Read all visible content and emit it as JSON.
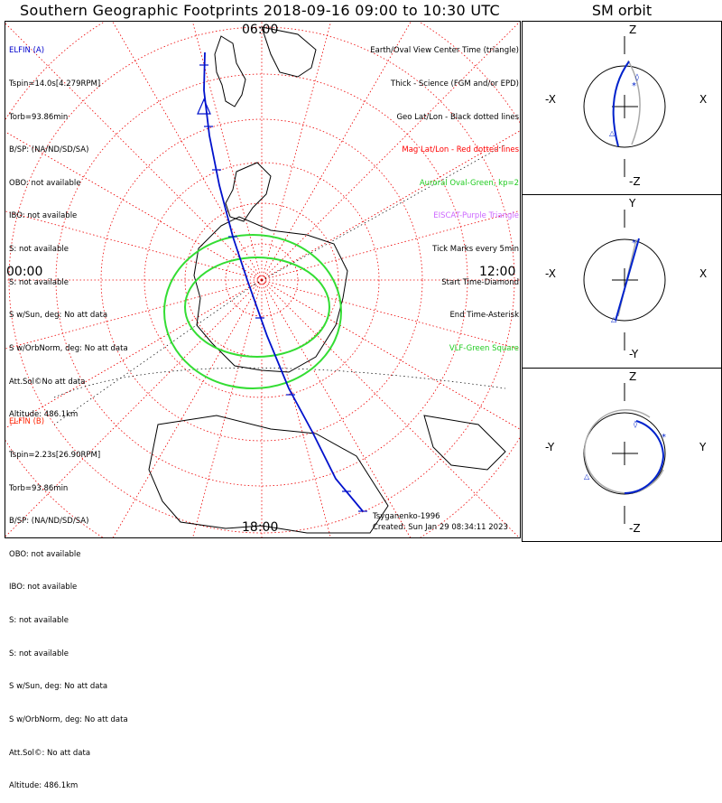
{
  "title": "Southern Geographic Footprints 2018-09-16 09:00 to 10:30 UTC",
  "sm_title": "SM orbit",
  "map": {
    "clock_top": "06:00",
    "clock_left": "00:00",
    "clock_right": "12:00",
    "clock_bottom": "18:00",
    "model": "Tsyganenko-1996",
    "created": "Created: Sun Jan 29 08:34:11 2023"
  },
  "elfin_a": {
    "name": "ELFIN (A)",
    "color": "#0000cc",
    "lines": [
      "Tspin=14.0s[4.279RPM]",
      "Torb=93.86min",
      "B/SP: (NA/ND/SD/SA)",
      "OBO: not available",
      "IBO: not available",
      "S: not available",
      "S: not available",
      "S w/Sun, deg: No att data",
      "S w/OrbNorm, deg: No att data",
      "Att.Sol©No att data",
      "Altitude: 486.1km"
    ]
  },
  "elfin_b": {
    "name": "ELFIN (B)",
    "color": "#ff2200",
    "lines": [
      "Tspin=2.23s[26.90RPM]",
      "Torb=93.86min",
      "B/SP: (NA/ND/SD/SA)",
      "OBO: not available",
      "IBO: not available",
      "S: not available",
      "S: not available",
      "S w/Sun, deg: No att data",
      "S w/OrbNorm, deg: No att data",
      "Att.Sol©: No att data",
      "Altitude: 486.1km"
    ]
  },
  "legend": [
    {
      "text": "Earth/Oval View Center Time (triangle)",
      "color": "#000000"
    },
    {
      "text": "Thick - Science (FGM and/or EPD)",
      "color": "#000000"
    },
    {
      "text": "Geo Lat/Lon - Black dotted lines",
      "color": "#000000"
    },
    {
      "text": "Mag Lat/Lon - Red dotted lines",
      "color": "#ff0000"
    },
    {
      "text": "Auroral Oval-Green, kp=2",
      "color": "#22cc22"
    },
    {
      "text": "EISCAT-Purple Triangle",
      "color": "#cc66ff"
    },
    {
      "text": "Tick Marks every 5min",
      "color": "#000000"
    },
    {
      "text": "Start Time-Diamond",
      "color": "#000000"
    },
    {
      "text": "End Time-Asterisk",
      "color": "#000000"
    },
    {
      "text": "VLF-Green Square",
      "color": "#22cc22"
    }
  ],
  "sm_panels": [
    {
      "top": "Z",
      "bottom": "-Z",
      "left": "-X",
      "right": "X"
    },
    {
      "top": "Y",
      "bottom": "-Y",
      "left": "-X",
      "right": "X"
    },
    {
      "top": "Z",
      "bottom": "-Z",
      "left": "-Y",
      "right": "Y"
    }
  ]
}
